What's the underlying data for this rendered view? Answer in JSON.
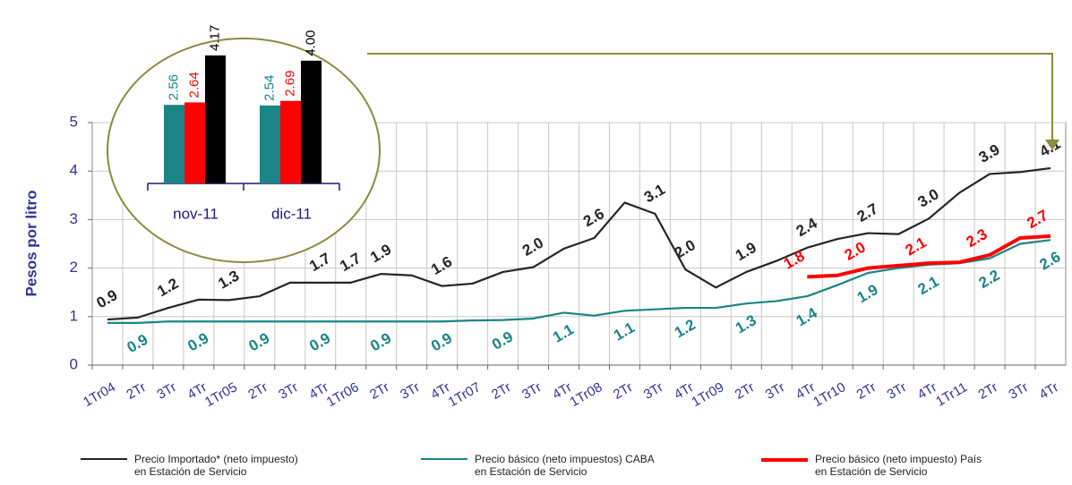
{
  "chart_data": [
    {
      "type": "line",
      "y_label": "Pesos por litro",
      "categories": [
        "1Tr04",
        "2Tr",
        "3Tr",
        "4Tr",
        "1Tr05",
        "2Tr",
        "3Tr",
        "4Tr",
        "1Tr06",
        "2Tr",
        "3Tr",
        "4Tr",
        "1Tr07",
        "2Tr",
        "3Tr",
        "4Tr",
        "1Tr08",
        "2Tr",
        "3Tr",
        "4Tr",
        "1Tr09",
        "2Tr",
        "3Tr",
        "4Tr",
        "1Tr10",
        "2Tr",
        "3Tr",
        "4Tr",
        "1Tr11",
        "2Tr",
        "3Tr",
        "4Tr"
      ],
      "ylim": [
        0,
        5
      ],
      "yticks": [
        0,
        1,
        2,
        3,
        4,
        5
      ],
      "grid": true,
      "series": [
        {
          "name": "Precio Importado* (neto impuesto)\nen Estación de Servicio",
          "color": "#262626",
          "width": 2.2,
          "values": [
            0.94,
            0.98,
            1.18,
            1.35,
            1.34,
            1.42,
            1.7,
            1.7,
            1.7,
            1.88,
            1.85,
            1.63,
            1.68,
            1.92,
            2.02,
            2.4,
            2.62,
            3.35,
            3.12,
            1.97,
            1.6,
            1.92,
            2.15,
            2.42,
            2.6,
            2.72,
            2.7,
            3.02,
            3.55,
            3.94,
            3.98,
            4.06
          ],
          "value_labels": [
            "0.9",
            null,
            "1.2",
            null,
            "1.3",
            null,
            null,
            "1.7",
            "1.7",
            "1.9",
            null,
            "1.6",
            null,
            null,
            "2.0",
            null,
            "2.6",
            null,
            "3.1",
            "2.0",
            null,
            "1.9",
            null,
            "2.4",
            null,
            "2.7",
            null,
            "3.0",
            null,
            "3.9",
            null,
            "4.1"
          ]
        },
        {
          "name": "Precio básico (neto impuestos) CABA\nen Estación de Servicio",
          "color": "#1a8585",
          "width": 2.2,
          "values": [
            0.87,
            0.87,
            0.9,
            0.9,
            0.9,
            0.9,
            0.9,
            0.9,
            0.9,
            0.9,
            0.9,
            0.9,
            0.92,
            0.93,
            0.96,
            1.08,
            1.02,
            1.12,
            1.15,
            1.18,
            1.18,
            1.27,
            1.32,
            1.42,
            1.65,
            1.9,
            2.0,
            2.07,
            2.1,
            2.2,
            2.5,
            2.58
          ],
          "value_labels": [
            null,
            "0.9",
            null,
            "0.9",
            null,
            "0.9",
            null,
            "0.9",
            null,
            "0.9",
            null,
            "0.9",
            null,
            "0.9",
            null,
            "1.1",
            null,
            "1.1",
            null,
            "1.2",
            null,
            "1.3",
            null,
            "1.4",
            null,
            "1.9",
            null,
            "2.1",
            null,
            "2.2",
            null,
            "2.6"
          ]
        },
        {
          "name": "Precio básico (neto impuesto) País\nen Estación de Servicio",
          "color": "#ff0000",
          "width": 4,
          "values": [
            null,
            null,
            null,
            null,
            null,
            null,
            null,
            null,
            null,
            null,
            null,
            null,
            null,
            null,
            null,
            null,
            null,
            null,
            null,
            null,
            null,
            null,
            null,
            1.82,
            1.85,
            2.0,
            2.05,
            2.1,
            2.12,
            2.27,
            2.62,
            2.66
          ],
          "value_labels": [
            null,
            null,
            null,
            null,
            null,
            null,
            null,
            null,
            null,
            null,
            null,
            null,
            null,
            null,
            null,
            null,
            null,
            null,
            null,
            null,
            null,
            null,
            null,
            "1.8",
            null,
            "2.0",
            null,
            "2.1",
            null,
            "2.3",
            null,
            "2.7"
          ]
        }
      ]
    },
    {
      "type": "bar",
      "categories": [
        "nov-11",
        "dic-11"
      ],
      "series": [
        {
          "color": "#1a8585",
          "values": [
            2.56,
            2.54
          ]
        },
        {
          "color": "#ff0000",
          "values": [
            2.64,
            2.69
          ]
        },
        {
          "color": "#000000",
          "values": [
            4.17,
            4
          ],
          "value_labels": [
            "4.17",
            "4.00"
          ]
        }
      ]
    }
  ]
}
